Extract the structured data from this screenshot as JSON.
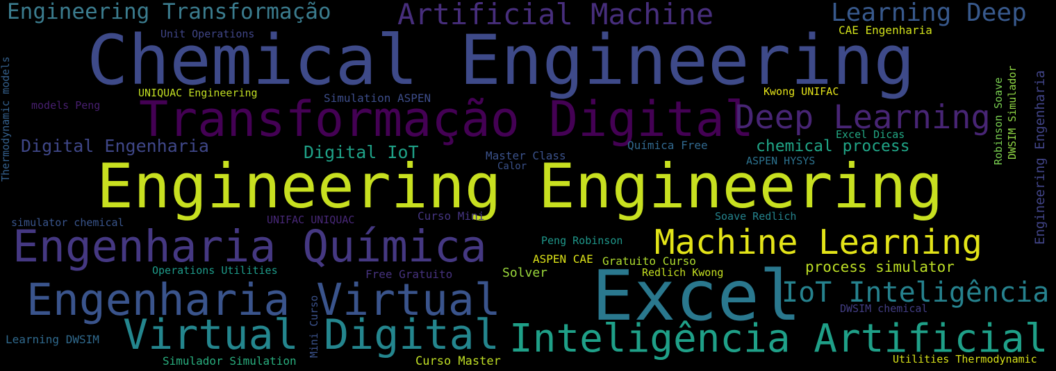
{
  "words": [
    {
      "id": "w01",
      "text": "Engineering Transformação",
      "color": "#3b7c8e"
    },
    {
      "id": "w02",
      "text": "Artificial Machine",
      "color": "#472e7c"
    },
    {
      "id": "w03",
      "text": "Learning Deep",
      "color": "#38598c"
    },
    {
      "id": "w04",
      "text": "Unit Operations",
      "color": "#404688"
    },
    {
      "id": "w05",
      "text": "CAE Engenharia",
      "color": "#d2e21b"
    },
    {
      "id": "w06",
      "text": "Chemical Engineering",
      "color": "#3e4a89"
    },
    {
      "id": "w07",
      "text": "UNIQUAC Engineering",
      "color": "#c2df23"
    },
    {
      "id": "w08",
      "text": "Simulation ASPEN",
      "color": "#3d4d8a"
    },
    {
      "id": "w09",
      "text": "Kwong UNIFAC",
      "color": "#e5e419"
    },
    {
      "id": "w10",
      "text": "models Peng",
      "color": "#481f70"
    },
    {
      "id": "w11",
      "text": "Transformação Digital",
      "color": "#440154"
    },
    {
      "id": "w12",
      "text": "Deep Learning",
      "color": "#482575"
    },
    {
      "id": "w13",
      "text": "Excel Dicas",
      "color": "#22a884"
    },
    {
      "id": "w14",
      "text": "Digital Engenharia",
      "color": "#3f4788"
    },
    {
      "id": "w15",
      "text": "Digital IoT",
      "color": "#1fa187"
    },
    {
      "id": "w16",
      "text": "Master Class",
      "color": "#3b528b"
    },
    {
      "id": "w17",
      "text": "Química Free",
      "color": "#31688e"
    },
    {
      "id": "w18",
      "text": "chemical process",
      "color": "#20a486"
    },
    {
      "id": "w19",
      "text": "Calor",
      "color": "#3b528b"
    },
    {
      "id": "w20",
      "text": "ASPEN HYSYS",
      "color": "#2c728e"
    },
    {
      "id": "w21",
      "text": "Engineering Engineering",
      "color": "#c8e020"
    },
    {
      "id": "w22",
      "text": "simulator chemical",
      "color": "#39558c"
    },
    {
      "id": "w23",
      "text": "UNIFAC UNIQUAC",
      "color": "#482878"
    },
    {
      "id": "w24",
      "text": "Curso Mini",
      "color": "#453581"
    },
    {
      "id": "w25",
      "text": "Soave Redlich",
      "color": "#25848e"
    },
    {
      "id": "w26",
      "text": "Engenharia Química",
      "color": "#453882"
    },
    {
      "id": "w27",
      "text": "Machine Learning",
      "color": "#e3e418"
    },
    {
      "id": "w28",
      "text": "Peng Robinson",
      "color": "#1f988b"
    },
    {
      "id": "w29",
      "text": "ASPEN CAE",
      "color": "#dde318"
    },
    {
      "id": "w30",
      "text": "Gratuito Curso",
      "color": "#b0dd2f"
    },
    {
      "id": "w31",
      "text": "process simulator",
      "color": "#bddf26"
    },
    {
      "id": "w32",
      "text": "Operations Utilities",
      "color": "#1e9b8a"
    },
    {
      "id": "w33",
      "text": "Free Gratuito",
      "color": "#46327e"
    },
    {
      "id": "w34",
      "text": "Solver",
      "color": "#9bd93c"
    },
    {
      "id": "w35",
      "text": "Redlich Kwong",
      "color": "#c5e021"
    },
    {
      "id": "w36",
      "text": "Excel",
      "color": "#2a788e"
    },
    {
      "id": "w37",
      "text": "IoT Inteligência",
      "color": "#26828e"
    },
    {
      "id": "w38",
      "text": "Engenharia Virtual",
      "color": "#3a548c"
    },
    {
      "id": "w39",
      "text": "DWSIM chemical",
      "color": "#433e85"
    },
    {
      "id": "w40",
      "text": "Virtual Digital",
      "color": "#24868e"
    },
    {
      "id": "w41",
      "text": "Inteligência Artificial",
      "color": "#1fa088"
    },
    {
      "id": "w42",
      "text": "Learning DWSIM",
      "color": "#306a8e"
    },
    {
      "id": "w43",
      "text": "Simulador Simulation",
      "color": "#29af7f"
    },
    {
      "id": "w44",
      "text": "Curso Master",
      "color": "#c0df25"
    },
    {
      "id": "w45",
      "text": "Utilities Thermodynamic",
      "color": "#d8e219"
    },
    {
      "id": "w46",
      "text": "Thermodynamic models",
      "color": "#34608d"
    },
    {
      "id": "w47",
      "text": "Mini Curso",
      "color": "#3b528b"
    },
    {
      "id": "w48",
      "text": "Robinson Soave",
      "color": "#7ad151"
    },
    {
      "id": "w49",
      "text": "DWSIM Simulador",
      "color": "#8fd744"
    },
    {
      "id": "w50",
      "text": "Engineering Engenharia",
      "color": "#414487"
    }
  ]
}
